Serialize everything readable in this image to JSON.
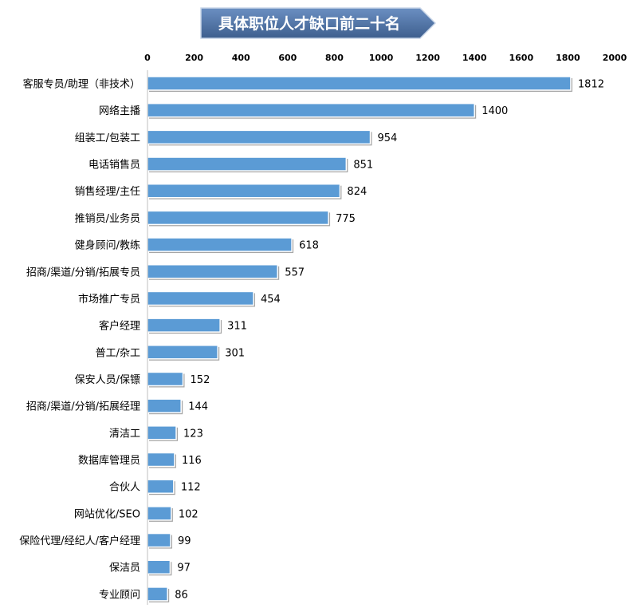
{
  "chart_data": {
    "type": "bar",
    "orientation": "horizontal",
    "title": "具体职位人才缺口前二十名",
    "xlabel": "",
    "ylabel": "",
    "xlim": [
      0,
      2000
    ],
    "x_ticks": [
      "0",
      "200",
      "400",
      "600",
      "800",
      "1000",
      "1200",
      "1400",
      "1600",
      "1800",
      "2000"
    ],
    "x_tick_values": [
      0,
      200,
      400,
      600,
      800,
      1000,
      1200,
      1400,
      1600,
      1800,
      2000
    ],
    "axis_position": "top",
    "grid": false,
    "bar_color": "#5b9bd5",
    "title_bg_color": "#4a6b9a",
    "categories": [
      "客服专员/助理（非技术）",
      "网络主播",
      "组装工/包装工",
      "电话销售员",
      "销售经理/主任",
      "推销员/业务员",
      "健身顾问/教练",
      "招商/渠道/分销/拓展专员",
      "市场推广专员",
      "客户经理",
      "普工/杂工",
      "保安人员/保镖",
      "招商/渠道/分销/拓展经理",
      "清洁工",
      "数据库管理员",
      "合伙人",
      "网站优化/SEO",
      "保险代理/经纪人/客户经理",
      "保洁员",
      "专业顾问"
    ],
    "values": [
      1812,
      1400,
      954,
      851,
      824,
      775,
      618,
      557,
      454,
      311,
      301,
      152,
      144,
      123,
      116,
      112,
      102,
      99,
      97,
      86
    ],
    "value_labels": [
      "1812",
      "1400",
      "954",
      "851",
      "824",
      "775",
      "618",
      "557",
      "454",
      "311",
      "301",
      "152",
      "144",
      "123",
      "116",
      "112",
      "102",
      "99",
      "97",
      "86"
    ]
  }
}
